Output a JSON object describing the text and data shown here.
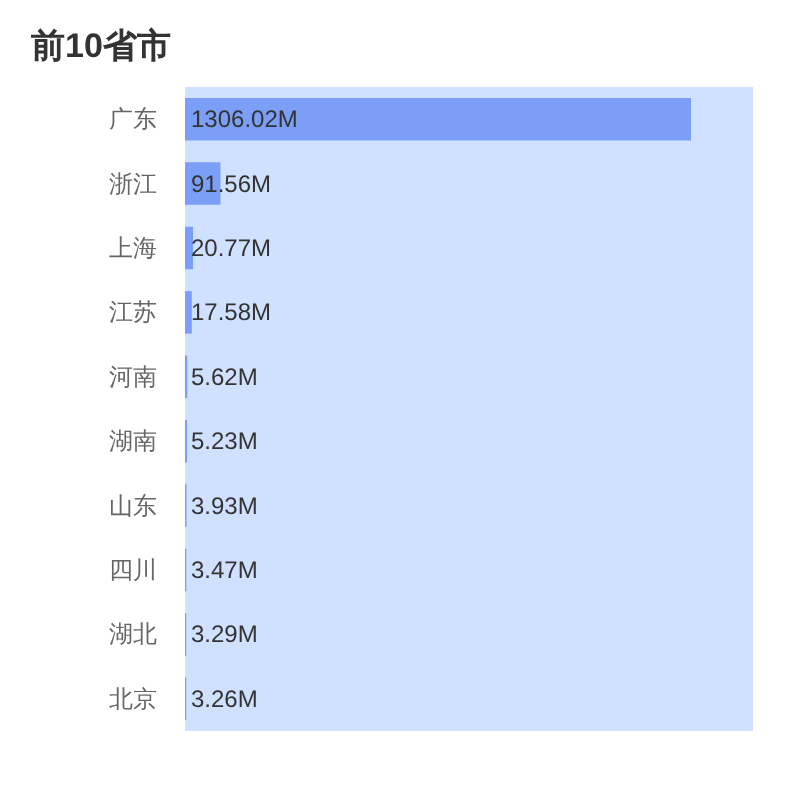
{
  "chart_data": {
    "type": "bar",
    "orientation": "horizontal",
    "title": "前10省市",
    "categories": [
      "广东",
      "浙江",
      "上海",
      "江苏",
      "河南",
      "湖南",
      "山东",
      "四川",
      "湖北",
      "北京"
    ],
    "values": [
      1306.02,
      91.56,
      20.77,
      17.58,
      5.62,
      5.23,
      3.93,
      3.47,
      3.29,
      3.26
    ],
    "value_labels": [
      "1306.02M",
      "91.56M",
      "20.77M",
      "17.58M",
      "5.62M",
      "5.23M",
      "3.93M",
      "3.47M",
      "3.29M",
      "3.26M"
    ],
    "color": "#7b9ef6",
    "xlim": [
      0,
      1466
    ],
    "tick_labels": "y",
    "bands": [
      {
        "axis": "x",
        "from": 0,
        "to": 1466,
        "color": "#d0e1ff"
      }
    ]
  }
}
